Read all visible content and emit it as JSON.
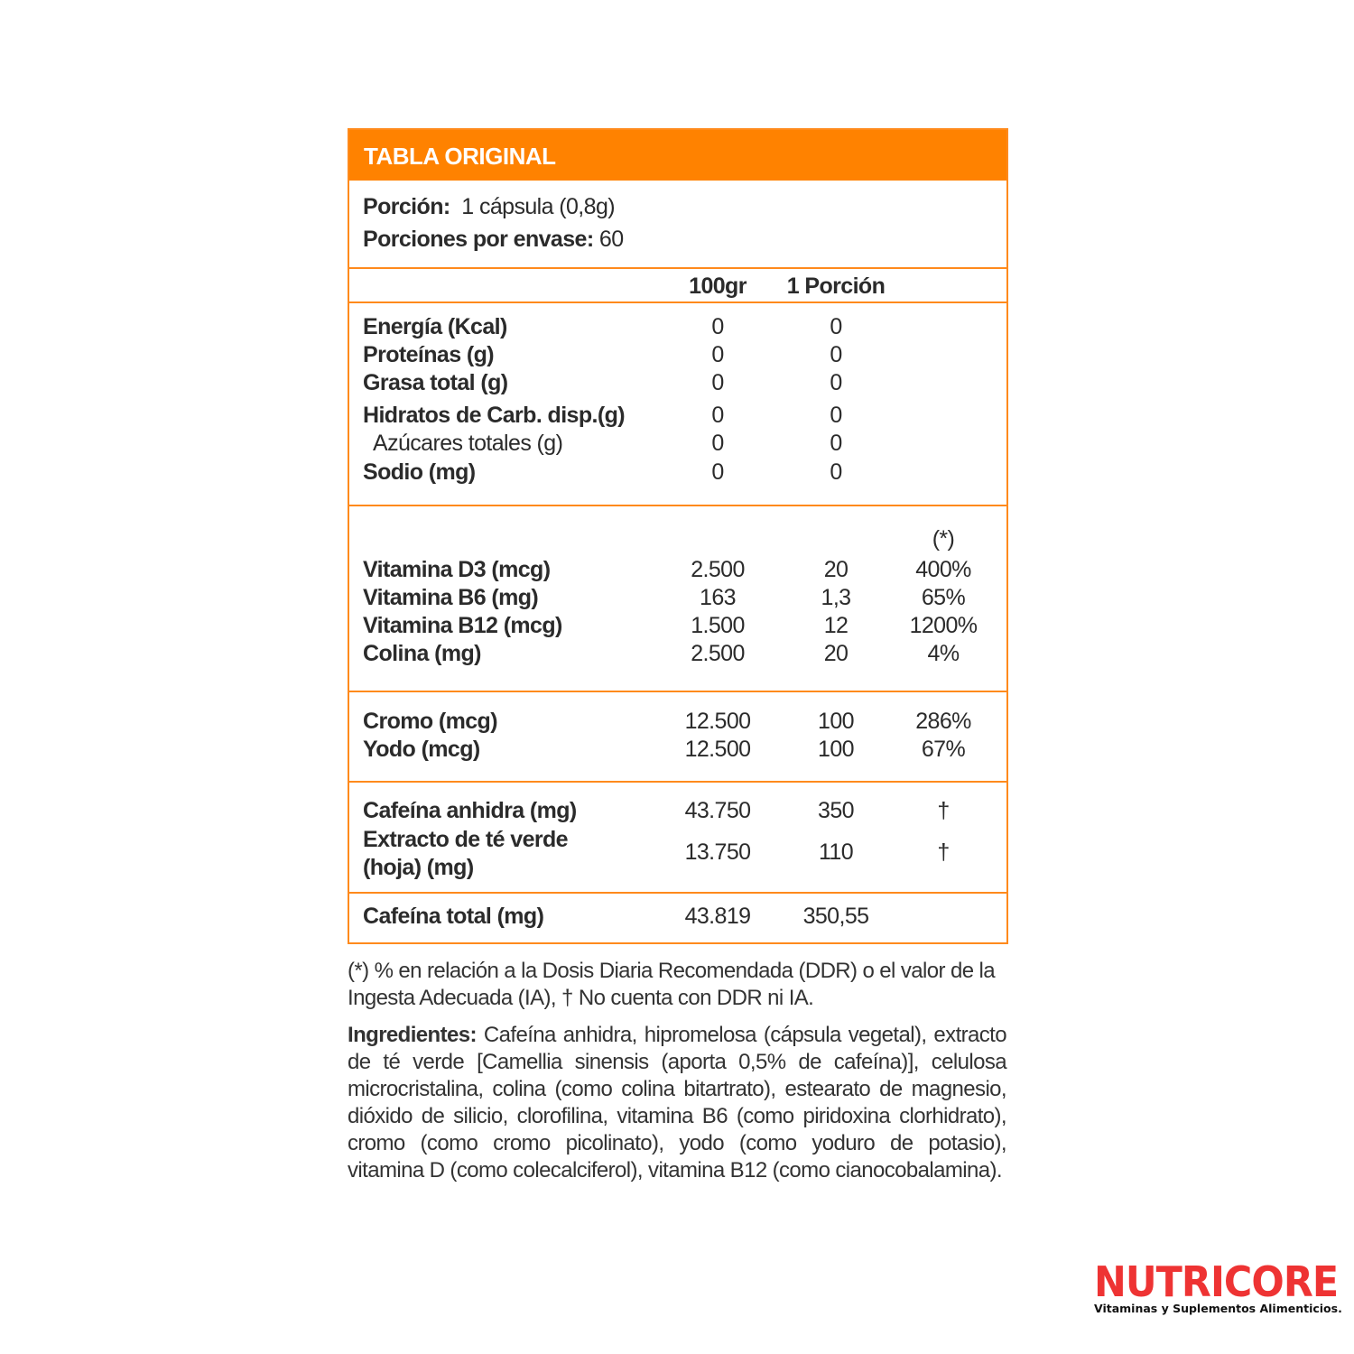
{
  "header": {
    "title": "TABLA ORIGINAL"
  },
  "portion": {
    "label": "Porción:",
    "value": "1 cápsula (0,8g)",
    "servings_label": "Porciones por envase:",
    "servings_value": "60"
  },
  "columns": {
    "col1": "100gr",
    "col2": "1 Porción"
  },
  "macros": [
    {
      "label": "Energía (Kcal)",
      "v100": "0",
      "vp": "0"
    },
    {
      "label": "Proteínas (g)",
      "v100": "0",
      "vp": "0"
    },
    {
      "label": "Grasa total (g)",
      "v100": "0",
      "vp": "0"
    },
    {
      "label": "Hidratos de Carb. disp.(g)",
      "v100": "0",
      "vp": "0"
    },
    {
      "label": "Azúcares totales (g)",
      "v100": "0",
      "vp": "0",
      "sub": true
    },
    {
      "label": "Sodio (mg)",
      "v100": "0",
      "vp": "0"
    }
  ],
  "ddr_marker": "(*)",
  "vitamins": [
    {
      "label": "Vitamina D3 (mcg)",
      "v100": "2.500",
      "vp": "20",
      "ddr": "400%"
    },
    {
      "label": "Vitamina B6 (mg)",
      "v100": "163",
      "vp": "1,3",
      "ddr": "65%"
    },
    {
      "label": "Vitamina B12 (mcg)",
      "v100": "1.500",
      "vp": "12",
      "ddr": "1200%"
    },
    {
      "label": "Colina (mg)",
      "v100": "2.500",
      "vp": "20",
      "ddr": "4%"
    }
  ],
  "minerals": [
    {
      "label": "Cromo (mcg)",
      "v100": "12.500",
      "vp": "100",
      "ddr": "286%"
    },
    {
      "label": "Yodo (mcg)",
      "v100": "12.500",
      "vp": "100",
      "ddr": "67%"
    }
  ],
  "others": [
    {
      "label": "Cafeína anhidra (mg)",
      "v100": "43.750",
      "vp": "350",
      "ddr": "†"
    },
    {
      "label": "Extracto de té verde",
      "label2": "(hoja) (mg)",
      "v100": "13.750",
      "vp": "110",
      "ddr": "†"
    }
  ],
  "total": {
    "label": "Cafeína total (mg)",
    "v100": "43.819",
    "vp": "350,55"
  },
  "footnote": {
    "line1": "(*) % en relación a la Dosis Diaria Recomendada (DDR) o el valor de la",
    "line2": "Ingesta Adecuada (IA), † No cuenta con DDR ni IA."
  },
  "ingredients": {
    "label": "Ingredientes:",
    "text": "Cafeína anhidra, hipromelosa (cápsula vegetal), extracto de té verde [Camellia sinensis (aporta 0,5% de cafeína)], celulosa microcristalina, colina (como colina bitartrato), estearato de magnesio, dióxido de silicio, clorofilina, vitamina B6 (como piridoxina clorhidrato), cromo (como cromo picolinato), yodo (como yoduro de potasio), vitamina D (como colecalciferol), vitamina B12 (como cianocobalamina)."
  },
  "logo": {
    "name": "NUTRICORE",
    "tagline": "Vitaminas y Suplementos Alimenticios."
  },
  "colors": {
    "accent": "#ff8200",
    "logo": "#ee3333"
  }
}
